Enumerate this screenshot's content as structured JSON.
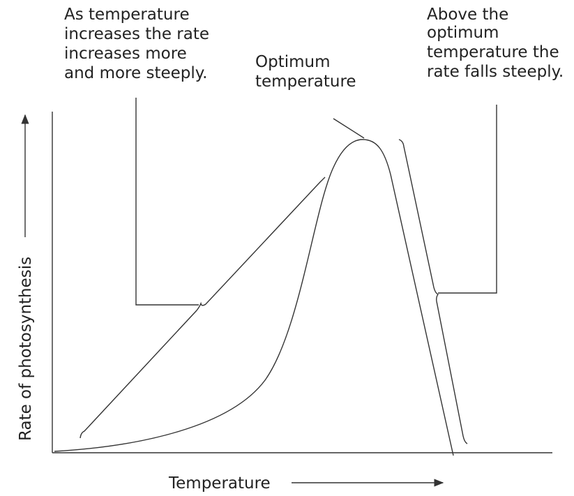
{
  "annotations": [
    {
      "lines": [
        "As temperature",
        "increases the rate",
        "increases more",
        "and more steeply."
      ]
    },
    {
      "lines": [
        "Optimum",
        "temperature"
      ]
    },
    {
      "lines": [
        "Above the",
        "optimum",
        "temperature the",
        "rate falls steeply."
      ]
    }
  ],
  "x_axis_label": "Temperature",
  "y_axis_label": "Rate of photosynthesis"
}
